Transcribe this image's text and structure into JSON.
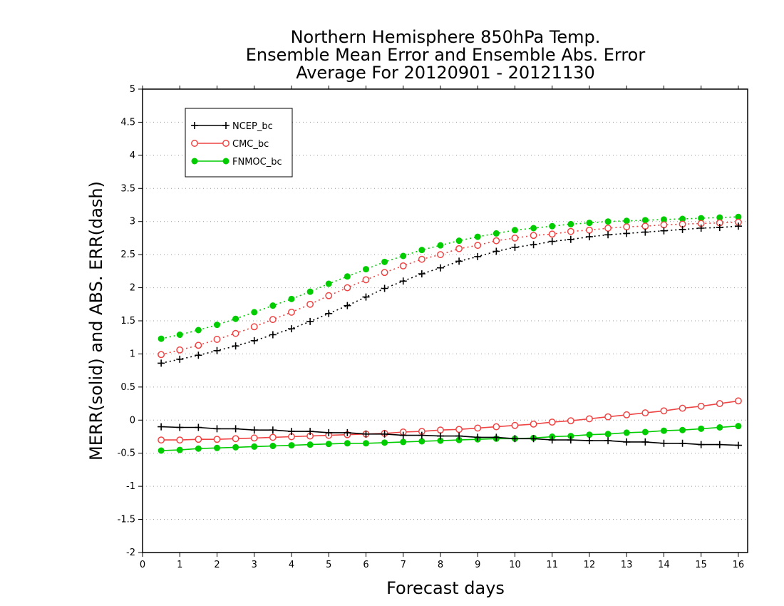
{
  "chart_data": {
    "type": "line",
    "title_lines": [
      "Northern Hemisphere 850hPa Temp.",
      "Ensemble Mean Error and Ensemble Abs. Error",
      "Average For 20120901 - 20121130"
    ],
    "xlabel": "Forecast days",
    "ylabel": "MERR(solid) and ABS. ERR(dash)",
    "xlim": [
      0,
      16.25
    ],
    "ylim": [
      -2,
      5
    ],
    "x_ticks": [
      0,
      1,
      2,
      3,
      4,
      5,
      6,
      7,
      8,
      9,
      10,
      11,
      12,
      13,
      14,
      15,
      16
    ],
    "y_ticks": [
      -2,
      -1.5,
      -1,
      -0.5,
      0,
      0.5,
      1,
      1.5,
      2,
      2.5,
      3,
      3.5,
      4,
      4.5,
      5
    ],
    "y_tick_labels": [
      "-2",
      "-1.5",
      "-1",
      "-0.5",
      "0",
      "0.5",
      "1",
      "1.5",
      "2",
      "2.5",
      "3",
      "3.5",
      "4",
      "4.5",
      "5"
    ],
    "grid": "horizontal dotted",
    "legend_position": "top-left",
    "x": [
      0.5,
      1,
      1.5,
      2,
      2.5,
      3,
      3.5,
      4,
      4.5,
      5,
      5.5,
      6,
      6.5,
      7,
      7.5,
      8,
      8.5,
      9,
      9.5,
      10,
      10.5,
      11,
      11.5,
      12,
      12.5,
      13,
      13.5,
      14,
      14.5,
      15,
      15.5,
      16
    ],
    "series": [
      {
        "name": "NCEP_bc",
        "color": "#000000",
        "marker": "plus",
        "merr": [
          -0.1,
          -0.11,
          -0.11,
          -0.13,
          -0.13,
          -0.15,
          -0.15,
          -0.17,
          -0.17,
          -0.19,
          -0.19,
          -0.21,
          -0.21,
          -0.23,
          -0.23,
          -0.24,
          -0.24,
          -0.26,
          -0.26,
          -0.28,
          -0.28,
          -0.3,
          -0.3,
          -0.31,
          -0.31,
          -0.33,
          -0.33,
          -0.35,
          -0.35,
          -0.37,
          -0.37,
          -0.38
        ],
        "abs_err": [
          0.86,
          0.92,
          0.98,
          1.05,
          1.12,
          1.2,
          1.29,
          1.38,
          1.49,
          1.61,
          1.73,
          1.86,
          1.99,
          2.1,
          2.21,
          2.3,
          2.4,
          2.47,
          2.55,
          2.61,
          2.65,
          2.7,
          2.73,
          2.77,
          2.8,
          2.82,
          2.84,
          2.86,
          2.88,
          2.9,
          2.91,
          2.93
        ]
      },
      {
        "name": "CMC_bc",
        "color": "#ee4444",
        "marker": "open-circle",
        "merr": [
          -0.3,
          -0.3,
          -0.29,
          -0.29,
          -0.28,
          -0.27,
          -0.26,
          -0.25,
          -0.24,
          -0.23,
          -0.22,
          -0.21,
          -0.2,
          -0.18,
          -0.17,
          -0.15,
          -0.14,
          -0.12,
          -0.1,
          -0.08,
          -0.06,
          -0.03,
          -0.01,
          0.02,
          0.05,
          0.08,
          0.11,
          0.14,
          0.18,
          0.21,
          0.25,
          0.29
        ],
        "abs_err": [
          0.99,
          1.06,
          1.13,
          1.22,
          1.31,
          1.41,
          1.52,
          1.63,
          1.75,
          1.88,
          2.0,
          2.12,
          2.23,
          2.33,
          2.43,
          2.5,
          2.59,
          2.64,
          2.71,
          2.75,
          2.79,
          2.81,
          2.85,
          2.87,
          2.9,
          2.92,
          2.93,
          2.95,
          2.96,
          2.97,
          2.98,
          2.99
        ]
      },
      {
        "name": "FNMOC_bc",
        "color": "#00cc00",
        "marker": "filled-circle",
        "merr": [
          -0.46,
          -0.45,
          -0.43,
          -0.42,
          -0.41,
          -0.4,
          -0.39,
          -0.38,
          -0.37,
          -0.36,
          -0.35,
          -0.35,
          -0.34,
          -0.33,
          -0.32,
          -0.31,
          -0.3,
          -0.29,
          -0.28,
          -0.28,
          -0.27,
          -0.25,
          -0.24,
          -0.22,
          -0.21,
          -0.19,
          -0.18,
          -0.16,
          -0.15,
          -0.13,
          -0.11,
          -0.09
        ],
        "abs_err": [
          1.23,
          1.29,
          1.36,
          1.44,
          1.53,
          1.63,
          1.73,
          1.83,
          1.94,
          2.06,
          2.17,
          2.28,
          2.39,
          2.48,
          2.57,
          2.64,
          2.71,
          2.77,
          2.82,
          2.87,
          2.9,
          2.93,
          2.96,
          2.98,
          3.0,
          3.01,
          3.02,
          3.03,
          3.04,
          3.05,
          3.06,
          3.07
        ]
      }
    ]
  }
}
